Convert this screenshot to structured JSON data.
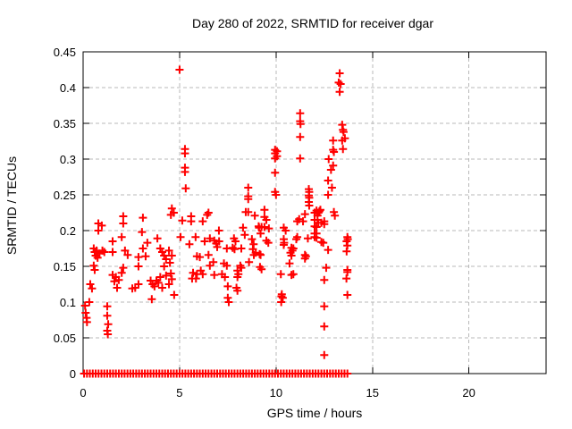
{
  "chart_data": {
    "type": "scatter",
    "title": "Day 280 of 2022, SRMTID for receiver dgar",
    "xlabel": "GPS time / hours",
    "ylabel": "SRMTID / TECUs",
    "xlim": [
      0,
      24
    ],
    "ylim": [
      0,
      0.45
    ],
    "xticks": [
      0,
      5,
      10,
      15,
      20
    ],
    "xtick_labels": [
      "0",
      "5",
      "10",
      "15",
      "20"
    ],
    "yticks": [
      0,
      0.05,
      0.1,
      0.15,
      0.2,
      0.25,
      0.3,
      0.35,
      0.4,
      0.45
    ],
    "ytick_labels": [
      "0",
      "0.05",
      "0.1",
      "0.15",
      "0.2",
      "0.25",
      "0.3",
      "0.35",
      "0.4",
      "0.45"
    ],
    "grid": true,
    "legend_position": "none",
    "marker": "plus",
    "colors": {
      "marker": "#ff0000",
      "grid": "#b8b8b8",
      "border": "#000000",
      "text": "#000000",
      "background": "#ffffff"
    },
    "series": [
      {
        "name": "SRMTID",
        "points": [
          [
            0.1,
            0.095
          ],
          [
            0.13,
            0.085
          ],
          [
            0.18,
            0.078
          ],
          [
            0.2,
            0.072
          ],
          [
            0.32,
            0.1
          ],
          [
            0.37,
            0.125
          ],
          [
            0.46,
            0.119
          ],
          [
            0.55,
            0.175
          ],
          [
            0.55,
            0.151
          ],
          [
            0.6,
            0.17
          ],
          [
            0.6,
            0.145
          ],
          [
            0.65,
            0.165
          ],
          [
            0.7,
            0.172
          ],
          [
            0.75,
            0.162
          ],
          [
            0.79,
            0.21
          ],
          [
            0.79,
            0.2
          ],
          [
            0.85,
            0.168
          ],
          [
            0.97,
            0.207
          ],
          [
            1.0,
            0.172
          ],
          [
            1.1,
            0.17
          ],
          [
            1.25,
            0.094
          ],
          [
            1.25,
            0.081
          ],
          [
            1.25,
            0.06
          ],
          [
            1.28,
            0.055
          ],
          [
            1.3,
            0.069
          ],
          [
            1.53,
            0.185
          ],
          [
            1.53,
            0.17
          ],
          [
            1.53,
            0.138
          ],
          [
            1.62,
            0.129
          ],
          [
            1.7,
            0.135
          ],
          [
            1.76,
            0.12
          ],
          [
            1.85,
            0.131
          ],
          [
            2.0,
            0.191
          ],
          [
            2.0,
            0.141
          ],
          [
            2.08,
            0.22
          ],
          [
            2.08,
            0.21
          ],
          [
            2.08,
            0.148
          ],
          [
            2.17,
            0.172
          ],
          [
            2.31,
            0.166
          ],
          [
            2.55,
            0.119
          ],
          [
            2.7,
            0.12
          ],
          [
            2.87,
            0.163
          ],
          [
            2.87,
            0.15
          ],
          [
            2.87,
            0.125
          ],
          [
            3.05,
            0.198
          ],
          [
            3.1,
            0.218
          ],
          [
            3.1,
            0.175
          ],
          [
            3.24,
            0.164
          ],
          [
            3.33,
            0.183
          ],
          [
            3.5,
            0.13
          ],
          [
            3.56,
            0.104
          ],
          [
            3.6,
            0.125
          ],
          [
            3.7,
            0.122
          ],
          [
            3.8,
            0.13
          ],
          [
            3.85,
            0.189
          ],
          [
            3.9,
            0.127
          ],
          [
            4.0,
            0.175
          ],
          [
            4.0,
            0.135
          ],
          [
            4.1,
            0.17
          ],
          [
            4.1,
            0.12
          ],
          [
            4.2,
            0.165
          ],
          [
            4.2,
            0.15
          ],
          [
            4.3,
            0.16
          ],
          [
            4.3,
            0.137
          ],
          [
            4.45,
            0.172
          ],
          [
            4.45,
            0.125
          ],
          [
            4.5,
            0.155
          ],
          [
            4.55,
            0.222
          ],
          [
            4.55,
            0.14
          ],
          [
            4.6,
            0.231
          ],
          [
            4.6,
            0.165
          ],
          [
            4.6,
            0.132
          ],
          [
            4.7,
            0.225
          ],
          [
            4.72,
            0.11
          ],
          [
            5.0,
            0.425
          ],
          [
            5.05,
            0.191
          ],
          [
            5.14,
            0.214
          ],
          [
            5.28,
            0.314
          ],
          [
            5.28,
            0.308
          ],
          [
            5.28,
            0.288
          ],
          [
            5.28,
            0.282
          ],
          [
            5.32,
            0.259
          ],
          [
            5.51,
            0.181
          ],
          [
            5.6,
            0.22
          ],
          [
            5.6,
            0.213
          ],
          [
            5.65,
            0.133
          ],
          [
            5.7,
            0.141
          ],
          [
            5.83,
            0.191
          ],
          [
            5.85,
            0.133
          ],
          [
            5.9,
            0.164
          ],
          [
            5.9,
            0.139
          ],
          [
            6.05,
            0.163
          ],
          [
            6.1,
            0.144
          ],
          [
            6.2,
            0.213
          ],
          [
            6.2,
            0.139
          ],
          [
            6.3,
            0.185
          ],
          [
            6.43,
            0.222
          ],
          [
            6.5,
            0.225
          ],
          [
            6.5,
            0.166
          ],
          [
            6.57,
            0.189
          ],
          [
            6.57,
            0.151
          ],
          [
            6.75,
            0.156
          ],
          [
            6.8,
            0.186
          ],
          [
            6.8,
            0.138
          ],
          [
            6.9,
            0.182
          ],
          [
            6.95,
            0.177
          ],
          [
            7.04,
            0.2
          ],
          [
            7.05,
            0.185
          ],
          [
            7.2,
            0.139
          ],
          [
            7.3,
            0.154
          ],
          [
            7.35,
            0.135
          ],
          [
            7.45,
            0.175
          ],
          [
            7.45,
            0.151
          ],
          [
            7.5,
            0.122
          ],
          [
            7.5,
            0.106
          ],
          [
            7.55,
            0.1
          ],
          [
            7.75,
            0.176
          ],
          [
            7.82,
            0.189
          ],
          [
            7.85,
            0.174
          ],
          [
            7.9,
            0.185
          ],
          [
            7.95,
            0.12
          ],
          [
            8.0,
            0.144
          ],
          [
            8.0,
            0.135
          ],
          [
            8.0,
            0.116
          ],
          [
            8.05,
            0.139
          ],
          [
            8.15,
            0.151
          ],
          [
            8.2,
            0.175
          ],
          [
            8.2,
            0.148
          ],
          [
            8.29,
            0.204
          ],
          [
            8.38,
            0.194
          ],
          [
            8.43,
            0.226
          ],
          [
            8.56,
            0.26
          ],
          [
            8.56,
            0.248
          ],
          [
            8.56,
            0.244
          ],
          [
            8.56,
            0.226
          ],
          [
            8.6,
            0.156
          ],
          [
            8.75,
            0.188
          ],
          [
            8.8,
            0.174
          ],
          [
            8.84,
            0.181
          ],
          [
            8.85,
            0.166
          ],
          [
            8.9,
            0.221
          ],
          [
            8.95,
            0.169
          ],
          [
            9.1,
            0.206
          ],
          [
            9.12,
            0.204
          ],
          [
            9.15,
            0.167
          ],
          [
            9.17,
            0.149
          ],
          [
            9.2,
            0.196
          ],
          [
            9.2,
            0.166
          ],
          [
            9.25,
            0.205
          ],
          [
            9.25,
            0.146
          ],
          [
            9.4,
            0.229
          ],
          [
            9.4,
            0.219
          ],
          [
            9.4,
            0.205
          ],
          [
            9.5,
            0.215
          ],
          [
            9.5,
            0.186
          ],
          [
            9.6,
            0.183
          ],
          [
            9.63,
            0.203
          ],
          [
            9.95,
            0.313
          ],
          [
            9.95,
            0.308
          ],
          [
            9.95,
            0.301
          ],
          [
            9.95,
            0.281
          ],
          [
            9.95,
            0.254
          ],
          [
            10.0,
            0.25
          ],
          [
            10.05,
            0.311
          ],
          [
            10.05,
            0.304
          ],
          [
            10.25,
            0.139
          ],
          [
            10.27,
            0.1
          ],
          [
            10.28,
            0.108
          ],
          [
            10.3,
            0.111
          ],
          [
            10.35,
            0.106
          ],
          [
            10.4,
            0.204
          ],
          [
            10.4,
            0.188
          ],
          [
            10.4,
            0.18
          ],
          [
            10.42,
            0.183
          ],
          [
            10.5,
            0.2
          ],
          [
            10.7,
            0.154
          ],
          [
            10.75,
            0.169
          ],
          [
            10.8,
            0.176
          ],
          [
            10.8,
            0.165
          ],
          [
            10.8,
            0.138
          ],
          [
            10.85,
            0.172
          ],
          [
            10.9,
            0.175
          ],
          [
            10.9,
            0.139
          ],
          [
            11.05,
            0.188
          ],
          [
            11.1,
            0.213
          ],
          [
            11.1,
            0.191
          ],
          [
            11.2,
            0.216
          ],
          [
            11.25,
            0.364
          ],
          [
            11.25,
            0.353
          ],
          [
            11.27,
            0.349
          ],
          [
            11.25,
            0.331
          ],
          [
            11.25,
            0.301
          ],
          [
            11.4,
            0.213
          ],
          [
            11.5,
            0.223
          ],
          [
            11.5,
            0.166
          ],
          [
            11.5,
            0.161
          ],
          [
            11.55,
            0.164
          ],
          [
            11.65,
            0.189
          ],
          [
            11.7,
            0.258
          ],
          [
            11.7,
            0.249
          ],
          [
            11.7,
            0.24
          ],
          [
            11.72,
            0.254
          ],
          [
            11.72,
            0.246
          ],
          [
            11.72,
            0.235
          ],
          [
            12.0,
            0.225
          ],
          [
            12.0,
            0.215
          ],
          [
            12.0,
            0.206
          ],
          [
            12.0,
            0.196
          ],
          [
            12.0,
            0.191
          ],
          [
            12.1,
            0.228
          ],
          [
            12.1,
            0.205
          ],
          [
            12.1,
            0.196
          ],
          [
            12.1,
            0.19
          ],
          [
            12.15,
            0.221
          ],
          [
            12.15,
            0.215
          ],
          [
            12.2,
            0.225
          ],
          [
            12.2,
            0.211
          ],
          [
            12.25,
            0.227
          ],
          [
            12.3,
            0.229
          ],
          [
            12.35,
            0.211
          ],
          [
            12.35,
            0.184
          ],
          [
            12.45,
            0.183
          ],
          [
            12.5,
            0.213
          ],
          [
            12.5,
            0.209
          ],
          [
            12.5,
            0.131
          ],
          [
            12.5,
            0.094
          ],
          [
            12.5,
            0.066
          ],
          [
            12.5,
            0.026
          ],
          [
            12.6,
            0.148
          ],
          [
            12.7,
            0.27
          ],
          [
            12.7,
            0.25
          ],
          [
            12.7,
            0.173
          ],
          [
            12.73,
            0.3
          ],
          [
            12.85,
            0.285
          ],
          [
            12.9,
            0.26
          ],
          [
            12.96,
            0.326
          ],
          [
            12.96,
            0.313
          ],
          [
            12.96,
            0.291
          ],
          [
            13.0,
            0.31
          ],
          [
            13.0,
            0.226
          ],
          [
            13.05,
            0.221
          ],
          [
            13.25,
            0.407
          ],
          [
            13.3,
            0.42
          ],
          [
            13.3,
            0.394
          ],
          [
            13.35,
            0.405
          ],
          [
            13.43,
            0.348
          ],
          [
            13.43,
            0.326
          ],
          [
            13.47,
            0.341
          ],
          [
            13.47,
            0.314
          ],
          [
            13.5,
            0.338
          ],
          [
            13.57,
            0.329
          ],
          [
            13.65,
            0.133
          ],
          [
            13.66,
            0.185
          ],
          [
            13.66,
            0.171
          ],
          [
            13.7,
            0.191
          ],
          [
            13.7,
            0.179
          ],
          [
            13.7,
            0.145
          ],
          [
            13.7,
            0.142
          ],
          [
            13.7,
            0.11
          ],
          [
            13.72,
            0.188
          ]
        ],
        "zero_row_x": [
          0.05,
          0.2,
          0.35,
          0.5,
          0.65,
          0.8,
          0.95,
          1.1,
          1.25,
          1.4,
          1.55,
          1.7,
          1.85,
          2.0,
          2.15,
          2.3,
          2.45,
          2.6,
          2.75,
          2.9,
          3.05,
          3.2,
          3.35,
          3.5,
          3.65,
          3.8,
          3.95,
          4.1,
          4.25,
          4.4,
          4.55,
          4.7,
          4.85,
          5.0,
          5.15,
          5.3,
          5.45,
          5.6,
          5.75,
          5.9,
          6.05,
          6.2,
          6.35,
          6.5,
          6.65,
          6.8,
          6.95,
          7.1,
          7.25,
          7.4,
          7.55,
          7.7,
          7.85,
          8.0,
          8.15,
          8.3,
          8.45,
          8.6,
          8.75,
          8.9,
          9.05,
          9.2,
          9.35,
          9.5,
          9.65,
          9.8,
          9.95,
          10.1,
          10.25,
          10.4,
          10.55,
          10.7,
          10.85,
          11.0,
          11.15,
          11.3,
          11.45,
          11.6,
          11.75,
          11.9,
          12.05,
          12.2,
          12.35,
          12.5,
          12.65,
          12.8,
          12.95,
          13.1,
          13.25,
          13.4,
          13.55,
          13.7
        ]
      }
    ]
  }
}
